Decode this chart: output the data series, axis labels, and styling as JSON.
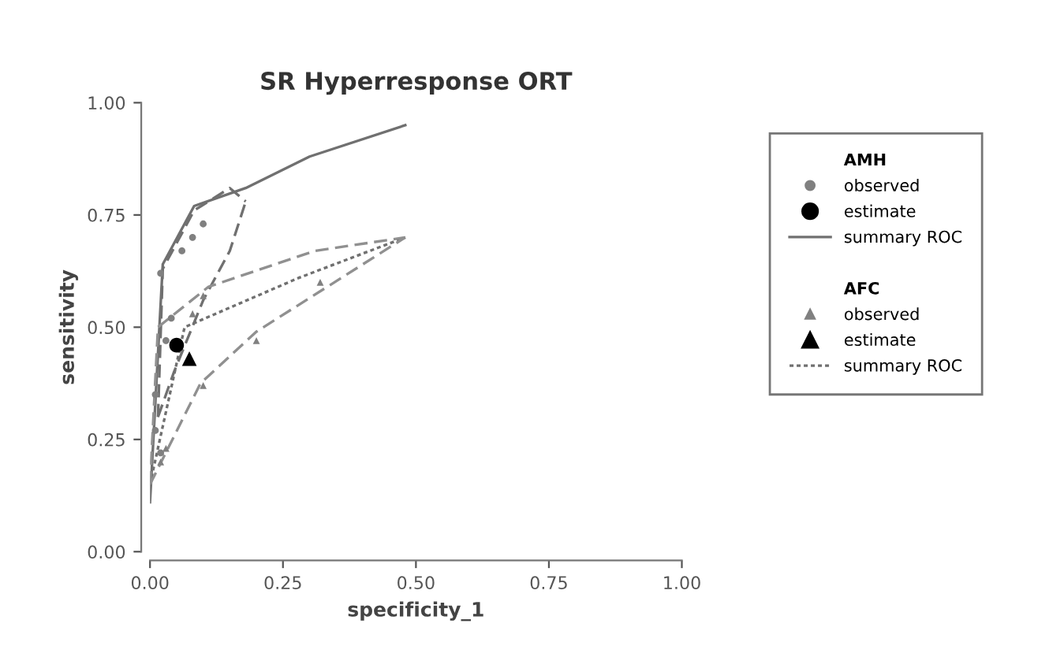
{
  "chart_data": {
    "type": "scatter",
    "title": "SR Hyperresponse ORT",
    "xlabel": "specificity_1",
    "ylabel": "sensitivity",
    "xlim": [
      0,
      1
    ],
    "ylim": [
      0,
      1
    ],
    "xticks": [
      {
        "value": 0,
        "label": "0.00"
      },
      {
        "value": 0.25,
        "label": "0.25"
      },
      {
        "value": 0.5,
        "label": "0.50"
      },
      {
        "value": 0.75,
        "label": "0.75"
      },
      {
        "value": 1,
        "label": "1.00"
      }
    ],
    "yticks": [
      {
        "value": 0,
        "label": "0.00"
      },
      {
        "value": 0.25,
        "label": "0.25"
      },
      {
        "value": 0.5,
        "label": "0.50"
      },
      {
        "value": 0.75,
        "label": "0.75"
      },
      {
        "value": 1,
        "label": "1.00"
      }
    ],
    "grid": false,
    "legend": "right",
    "annotations": [
      "AMH",
      "AFC"
    ],
    "series": [
      {
        "name": "observed",
        "type": "scatter",
        "marker": "circle",
        "color": "#808080",
        "x": [
          0.02,
          0.04,
          0.06,
          0.08,
          0.1,
          0.03,
          0.01,
          0.01,
          0.02
        ],
        "values": [
          0.62,
          0.52,
          0.67,
          0.7,
          0.73,
          0.47,
          0.35,
          0.27,
          0.22
        ]
      },
      {
        "name": "estimate",
        "type": "scatter",
        "marker": "circle",
        "color": "#000000",
        "x": [
          0.05
        ],
        "values": [
          0.46
        ]
      },
      {
        "name": "summary ROC",
        "type": "line",
        "line_style": "solid",
        "color": "#707070",
        "x": [
          0.0,
          0.024,
          0.083,
          0.18,
          0.3,
          0.48
        ],
        "values": [
          0.11,
          0.64,
          0.77,
          0.81,
          0.88,
          0.95
        ]
      },
      {
        "type": "line",
        "line_style": "dashed",
        "color": "#707070",
        "x": [
          0.015,
          0.024,
          0.083,
          0.15,
          0.18
        ],
        "values": [
          0.3,
          0.63,
          0.76,
          0.81,
          0.78
        ]
      },
      {
        "type": "line",
        "line_style": "dashed",
        "color": "#707070",
        "x": [
          0.015,
          0.045,
          0.1,
          0.15,
          0.18
        ],
        "values": [
          0.3,
          0.4,
          0.56,
          0.67,
          0.78
        ]
      },
      {
        "name": "observed",
        "type": "scatter",
        "marker": "triangle",
        "color": "#808080",
        "x": [
          0.1,
          0.08,
          0.32,
          0.2,
          0.1,
          0.03,
          0.02
        ],
        "values": [
          0.57,
          0.53,
          0.6,
          0.47,
          0.37,
          0.23,
          0.2
        ]
      },
      {
        "name": "estimate",
        "type": "scatter",
        "marker": "triangle",
        "color": "#000000",
        "x": [
          0.074
        ],
        "values": [
          0.43
        ]
      },
      {
        "name": "summary ROC",
        "type": "line",
        "line_style": "dotted",
        "color": "#707070",
        "x": [
          0.0,
          0.065,
          0.28,
          0.48
        ],
        "values": [
          0.15,
          0.5,
          0.61,
          0.7
        ]
      },
      {
        "type": "line",
        "line_style": "dashed",
        "color": "#909090",
        "x": [
          0.0,
          0.015,
          0.11,
          0.31,
          0.48
        ],
        "values": [
          0.15,
          0.5,
          0.59,
          0.67,
          0.7
        ]
      },
      {
        "type": "line",
        "line_style": "dashed",
        "color": "#909090",
        "x": [
          0.0,
          0.095,
          0.2,
          0.48
        ],
        "values": [
          0.15,
          0.375,
          0.49,
          0.7
        ]
      }
    ]
  }
}
